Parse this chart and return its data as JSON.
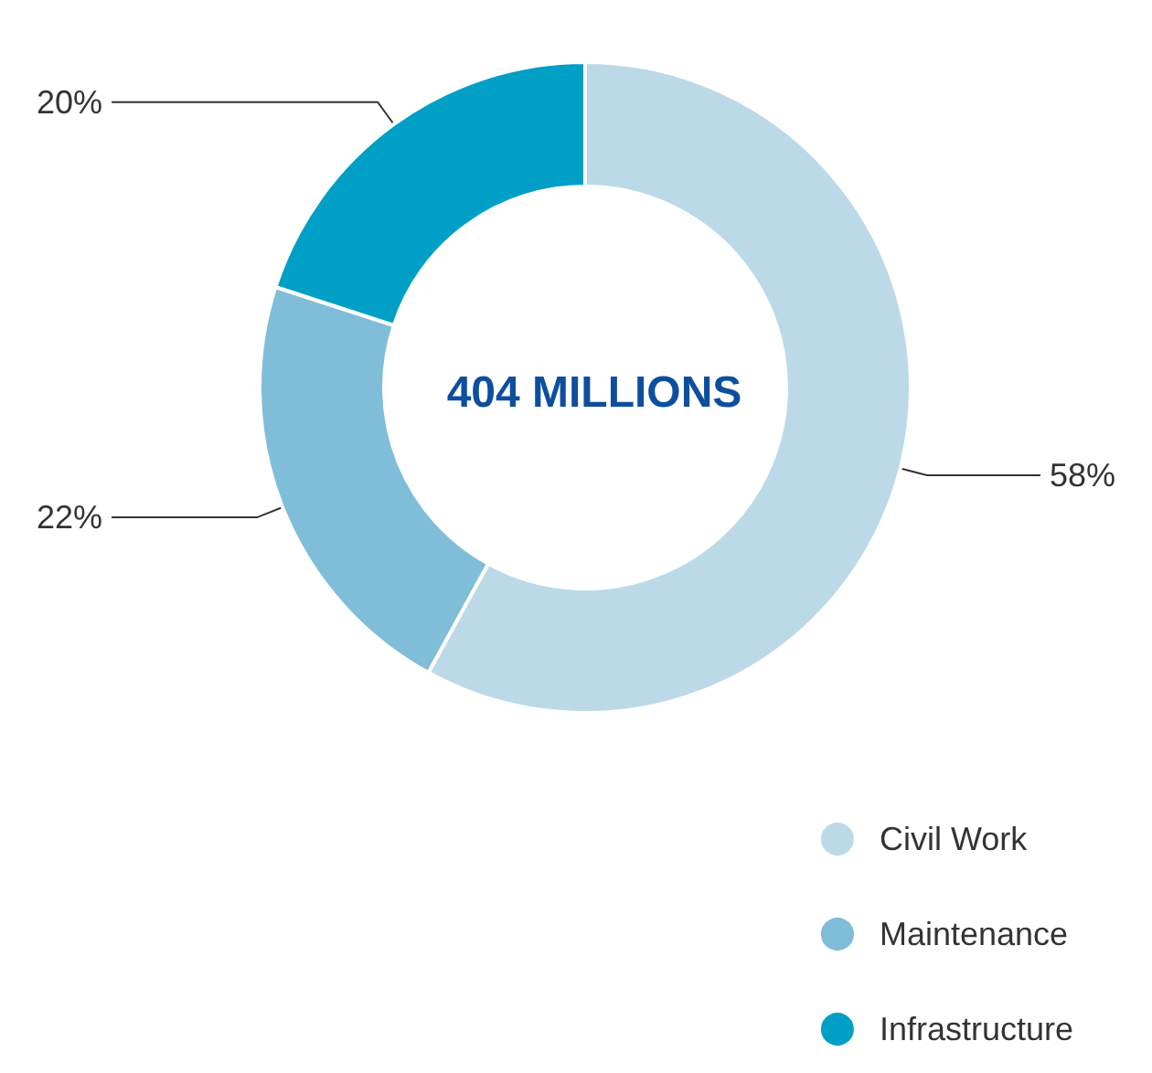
{
  "chart_data": {
    "type": "donut",
    "categories": [
      "Civil Work",
      "Maintenance",
      "Infrastructure"
    ],
    "values": [
      58,
      22,
      20
    ],
    "colors": [
      "#bcd9e8",
      "#80bdd8",
      "#00a0c6"
    ],
    "value_labels": [
      "58%",
      "22%",
      "20%"
    ],
    "legend": "bottom right",
    "annotations": [
      "404 MILLIONS"
    ]
  }
}
